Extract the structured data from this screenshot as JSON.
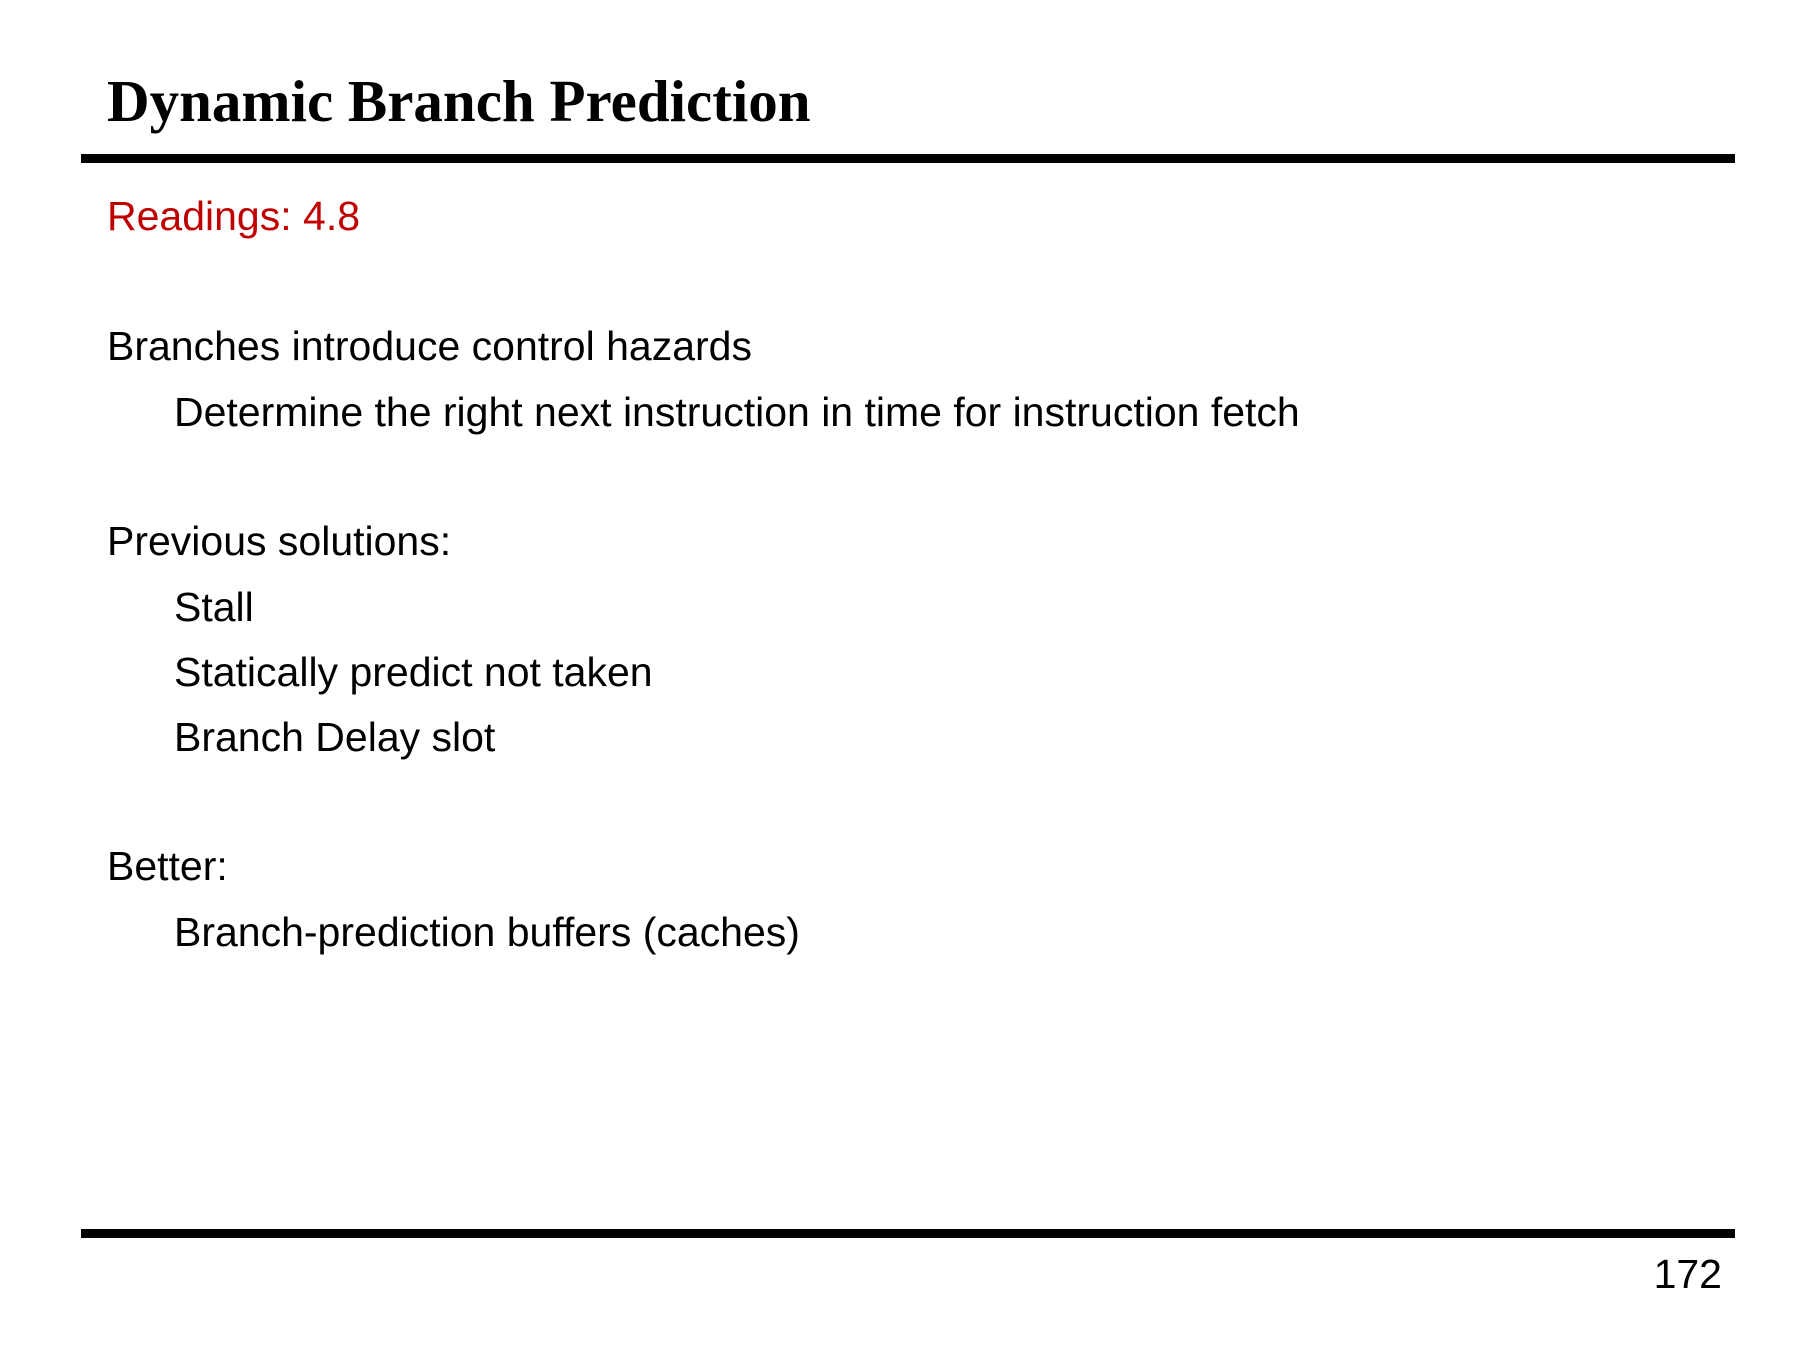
{
  "slide": {
    "title": "Dynamic Branch Prediction",
    "readings": "Readings: 4.8",
    "readings_color": "#c00000",
    "sections": [
      {
        "heading": "Branches introduce control hazards",
        "items": [
          "Determine the right next instruction in time for instruction fetch"
        ]
      },
      {
        "heading": "Previous solutions:",
        "items": [
          "Stall",
          "Statically predict not taken",
          "Branch Delay slot"
        ]
      },
      {
        "heading": "Better:",
        "items": [
          "Branch-prediction buffers (caches)"
        ]
      }
    ],
    "page_number": "172"
  }
}
